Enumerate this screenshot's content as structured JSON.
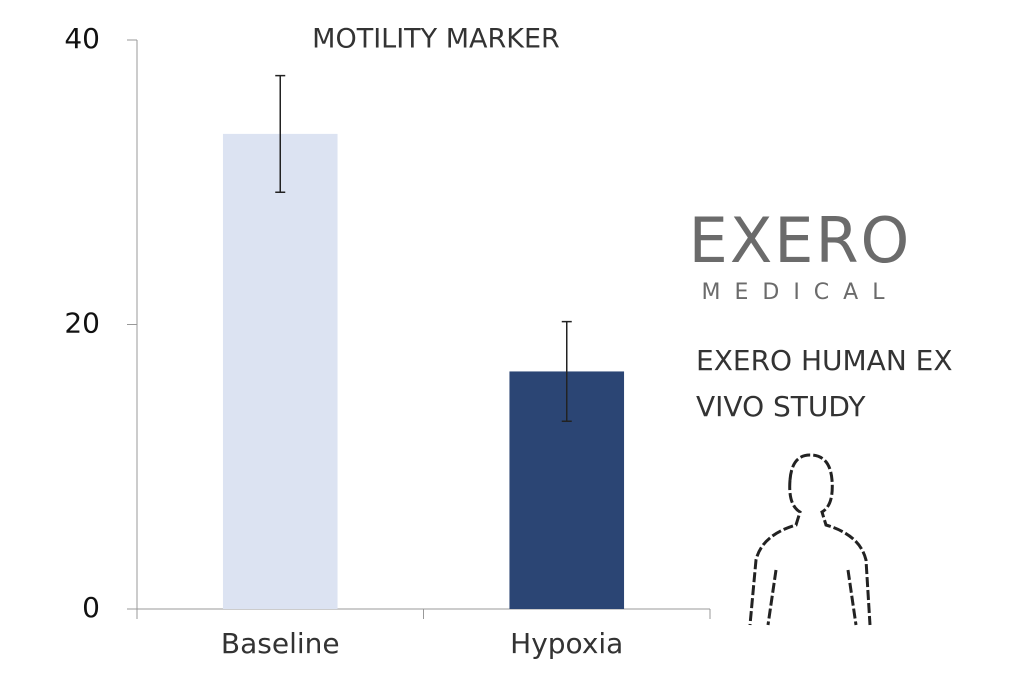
{
  "chart_data": {
    "type": "bar",
    "title": "MOTILITY MARKER",
    "categories": [
      "Baseline",
      "Hypoxia"
    ],
    "values": [
      33.4,
      16.7
    ],
    "errors": [
      4.1,
      3.5
    ],
    "colors": [
      "#dce3f2",
      "#2b4574"
    ],
    "ylim": [
      0,
      40
    ],
    "yticks": [
      0,
      20,
      40
    ],
    "grid": false
  },
  "logo": {
    "name": "EXERO",
    "tagline": "MEDICAL"
  },
  "study_label": [
    "EXERO HUMAN EX",
    "VIVO STUDY"
  ]
}
